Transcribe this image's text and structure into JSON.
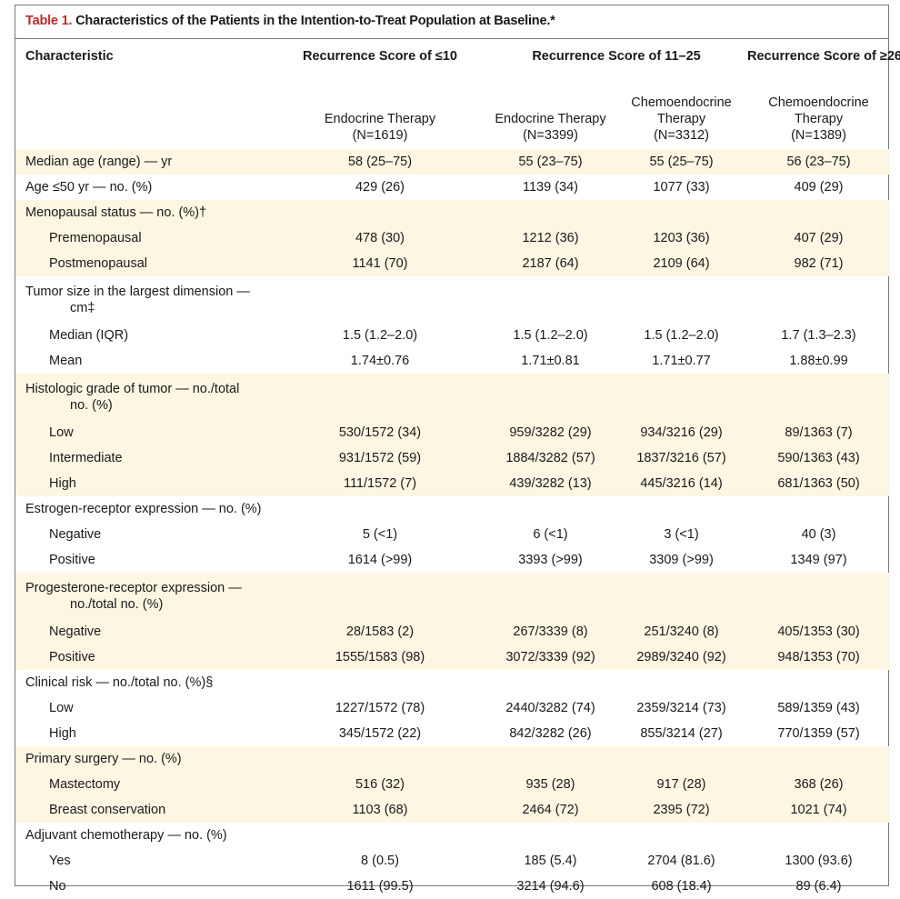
{
  "table_title": {
    "label": "Table 1.",
    "text": " Characteristics of the Patients in the Intention-to-Treat Population at Baseline.*"
  },
  "header": {
    "characteristic": "Characteristic",
    "groups": [
      "Recurrence Score of ≤10",
      "Recurrence Score of 11–25",
      "Recurrence Score of ≥26"
    ],
    "columns": [
      {
        "line1": "Endocrine Therapy",
        "line2": "",
        "n": "(N=1619)"
      },
      {
        "line1": "Endocrine Therapy",
        "line2": "",
        "n": "(N=3399)"
      },
      {
        "line1": "Chemoendocrine",
        "line2": "Therapy",
        "n": "(N=3312)"
      },
      {
        "line1": "Chemoendocrine",
        "line2": "Therapy",
        "n": "(N=1389)"
      }
    ]
  },
  "rows": [
    {
      "label": "Median age (range) — yr",
      "values": [
        "58 (25–75)",
        "55 (23–75)",
        "55 (25–75)",
        "56 (23–75)"
      ]
    },
    {
      "label": "Age ≤50 yr — no. (%)",
      "values": [
        "429 (26)",
        "1139 (34)",
        "1077 (33)",
        "409 (29)"
      ]
    },
    {
      "label": "Menopausal status — no. (%)†",
      "values": [
        "",
        "",
        "",
        ""
      ]
    },
    {
      "label": "Premenopausal",
      "values": [
        "478 (30)",
        "1212 (36)",
        "1203 (36)",
        "407 (29)"
      ]
    },
    {
      "label": "Postmenopausal",
      "values": [
        "1141 (70)",
        "2187 (64)",
        "2109 (64)",
        "982 (71)"
      ]
    },
    {
      "label": "Tumor size in the largest dimension —",
      "cont": "cm‡",
      "values": [
        "",
        "",
        "",
        ""
      ]
    },
    {
      "label": "Median (IQR)",
      "values": [
        "1.5 (1.2–2.0)",
        "1.5 (1.2–2.0)",
        "1.5 (1.2–2.0)",
        "1.7 (1.3–2.3)"
      ]
    },
    {
      "label": "Mean",
      "values": [
        "1.74±0.76",
        "1.71±0.81",
        "1.71±0.77",
        "1.88±0.99"
      ]
    },
    {
      "label": "Histologic grade of tumor — no./total",
      "cont": "no. (%)",
      "values": [
        "",
        "",
        "",
        ""
      ]
    },
    {
      "label": "Low",
      "values": [
        "530/1572 (34)",
        "959/3282 (29)",
        "934/3216 (29)",
        "89/1363 (7)"
      ]
    },
    {
      "label": "Intermediate",
      "values": [
        "931/1572 (59)",
        "1884/3282 (57)",
        "1837/3216 (57)",
        "590/1363 (43)"
      ]
    },
    {
      "label": "High",
      "values": [
        "111/1572 (7)",
        "439/3282 (13)",
        "445/3216 (14)",
        "681/1363 (50)"
      ]
    },
    {
      "label": "Estrogen-receptor expression — no. (%)",
      "values": [
        "",
        "",
        "",
        ""
      ]
    },
    {
      "label": "Negative",
      "values": [
        "5 (<1)",
        "6 (<1)",
        "3 (<1)",
        "40 (3)"
      ]
    },
    {
      "label": "Positive",
      "values": [
        "1614 (>99)",
        "3393 (>99)",
        "3309 (>99)",
        "1349 (97)"
      ]
    },
    {
      "label": "Progesterone-receptor expression —",
      "cont": "no./total no. (%)",
      "values": [
        "",
        "",
        "",
        ""
      ]
    },
    {
      "label": "Negative",
      "values": [
        "28/1583 (2)",
        "267/3339 (8)",
        "251/3240 (8)",
        "405/1353 (30)"
      ]
    },
    {
      "label": "Positive",
      "values": [
        "1555/1583 (98)",
        "3072/3339 (92)",
        "2989/3240 (92)",
        "948/1353 (70)"
      ]
    },
    {
      "label": "Clinical risk — no./total no. (%)§",
      "values": [
        "",
        "",
        "",
        ""
      ]
    },
    {
      "label": "Low",
      "values": [
        "1227/1572 (78)",
        "2440/3282 (74)",
        "2359/3214 (73)",
        "589/1359 (43)"
      ]
    },
    {
      "label": "High",
      "values": [
        "345/1572 (22)",
        "842/3282 (26)",
        "855/3214 (27)",
        "770/1359 (57)"
      ]
    },
    {
      "label": "Primary surgery — no. (%)",
      "values": [
        "",
        "",
        "",
        ""
      ]
    },
    {
      "label": "Mastectomy",
      "values": [
        "516 (32)",
        "935 (28)",
        "917 (28)",
        "368 (26)"
      ]
    },
    {
      "label": "Breast conservation",
      "values": [
        "1103 (68)",
        "2464 (72)",
        "2395 (72)",
        "1021 (74)"
      ]
    },
    {
      "label": "Adjuvant chemotherapy — no. (%)",
      "values": [
        "",
        "",
        "",
        ""
      ]
    },
    {
      "label": "Yes",
      "values": [
        "8 (0.5)",
        "185 (5.4)",
        "2704 (81.6)",
        "1300 (93.6)"
      ]
    },
    {
      "label": "No",
      "values": [
        "1611 (99.5)",
        "3214 (94.6)",
        "608 (18.4)",
        "89 (6.4)"
      ]
    }
  ],
  "colors": {
    "title_label": "#c0272d",
    "shade": "#fdf6e3",
    "border": "#7a7a7a"
  }
}
